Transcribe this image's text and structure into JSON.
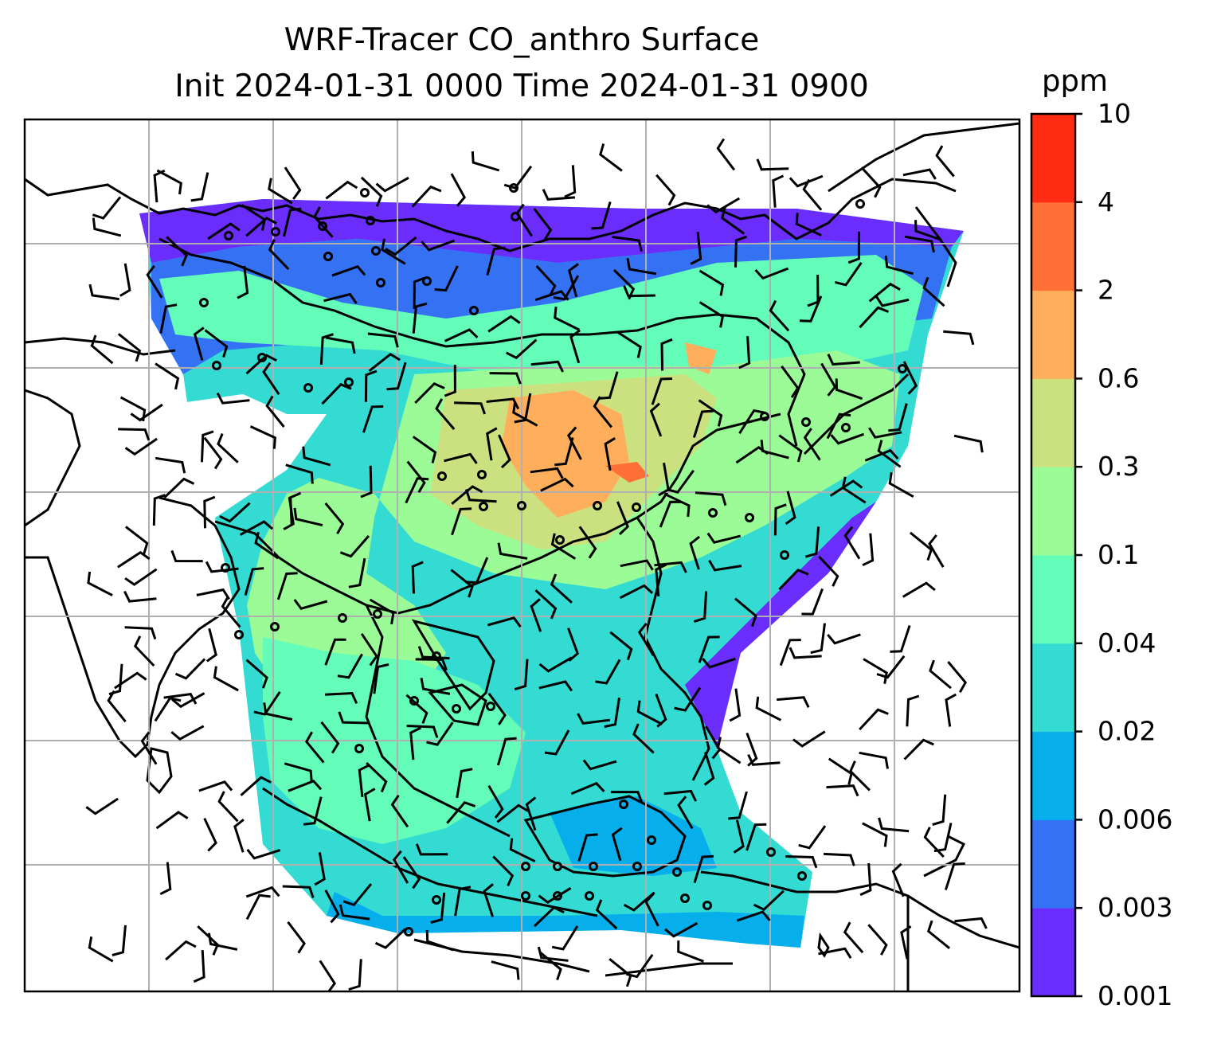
{
  "title_line1": "WRF-Tracer CO_anthro Surface",
  "title_line2": "Init 2024-01-31 0000 Time 2024-01-31 0900",
  "colorbar": {
    "unit": "ppm",
    "tick_labels": [
      "0.001",
      "0.003",
      "0.006",
      "0.02",
      "0.04",
      "0.1",
      "0.3",
      "0.6",
      "2",
      "4",
      "10"
    ],
    "colors": [
      "#6a2dfb",
      "#3471f3",
      "#06aeeb",
      "#33dbd2",
      "#63fcb9",
      "#9bfb97",
      "#cbe180",
      "#ffae5b",
      "#ff7036",
      "#ff2c14"
    ]
  },
  "map": {
    "grid_color": "#b0b0b0",
    "coastline_color": "#000000",
    "wind_barb_color": "#000000",
    "calm_marker": "circle"
  }
}
